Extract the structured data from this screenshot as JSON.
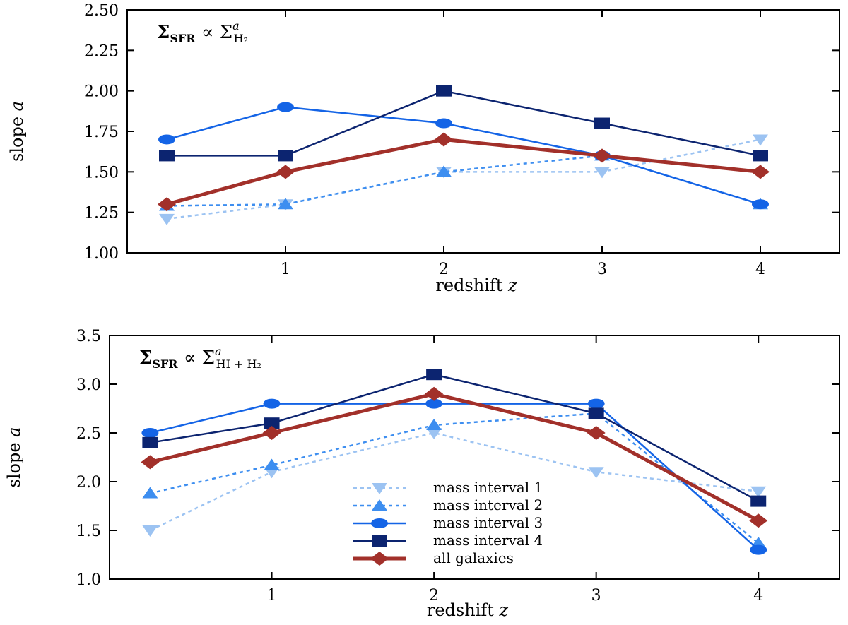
{
  "chart_data": [
    {
      "type": "line",
      "annotation": {
        "main": "Σ",
        "sub1": "SFR",
        "rel": " ∝ Σ",
        "sup": "a",
        "sub2": "H₂"
      },
      "xlabel": {
        "text": "redshift ",
        "var": "z"
      },
      "ylabel": {
        "text": "slope ",
        "var": "a"
      },
      "xlim": [
        0.0,
        4.5
      ],
      "ylim": [
        1.0,
        2.5
      ],
      "xticks": [
        1,
        2,
        3,
        4
      ],
      "xtick_labels": [
        "1",
        "2",
        "3",
        "4"
      ],
      "yticks": [
        1.0,
        1.25,
        1.5,
        1.75,
        2.0,
        2.25,
        2.5
      ],
      "ytick_labels": [
        "1.00",
        "1.25",
        "1.50",
        "1.75",
        "2.00",
        "2.25",
        "2.50"
      ],
      "grid": false,
      "series": [
        {
          "name": "mass interval 1",
          "x": [
            0.25,
            1,
            2,
            3,
            4
          ],
          "values": [
            1.21,
            1.3,
            1.5,
            1.5,
            1.7
          ]
        },
        {
          "name": "mass interval 2",
          "x": [
            0.25,
            1,
            2,
            3,
            4
          ],
          "values": [
            1.29,
            1.3,
            1.5,
            1.6,
            1.3
          ]
        },
        {
          "name": "mass interval 3",
          "x": [
            0.25,
            1,
            2,
            3,
            4
          ],
          "values": [
            1.7,
            1.9,
            1.8,
            1.6,
            1.3
          ]
        },
        {
          "name": "mass interval 4",
          "x": [
            0.25,
            1,
            2,
            3,
            4
          ],
          "values": [
            1.6,
            1.6,
            2.0,
            1.8,
            1.6
          ]
        },
        {
          "name": "all galaxies",
          "x": [
            0.25,
            1,
            2,
            3,
            4
          ],
          "values": [
            1.3,
            1.5,
            1.7,
            1.6,
            1.5
          ]
        }
      ]
    },
    {
      "type": "line",
      "annotation": {
        "main": "Σ",
        "sub1": "SFR",
        "rel": " ∝ Σ",
        "sup": "a",
        "sub2": "HI + H₂"
      },
      "xlabel": {
        "text": "redshift ",
        "var": "z"
      },
      "ylabel": {
        "text": "slope ",
        "var": "a"
      },
      "xlim": [
        0.0,
        4.5
      ],
      "ylim": [
        1.0,
        3.5
      ],
      "xticks": [
        1,
        2,
        3,
        4
      ],
      "xtick_labels": [
        "1",
        "2",
        "3",
        "4"
      ],
      "yticks": [
        1.0,
        1.5,
        2.0,
        2.5,
        3.0,
        3.5
      ],
      "ytick_labels": [
        "1.0",
        "1.5",
        "2.0",
        "2.5",
        "3.0",
        "3.5"
      ],
      "grid": false,
      "legend": {
        "position": "lower-center"
      },
      "series": [
        {
          "name": "mass interval 1",
          "x": [
            0.25,
            1,
            2,
            3,
            4
          ],
          "values": [
            1.5,
            2.1,
            2.5,
            2.1,
            1.9
          ]
        },
        {
          "name": "mass interval 2",
          "x": [
            0.25,
            1,
            2,
            3,
            4
          ],
          "values": [
            1.88,
            2.17,
            2.58,
            2.7,
            1.37
          ]
        },
        {
          "name": "mass interval 3",
          "x": [
            0.25,
            1,
            2,
            3,
            4
          ],
          "values": [
            2.5,
            2.8,
            2.8,
            2.8,
            1.3
          ]
        },
        {
          "name": "mass interval 4",
          "x": [
            0.25,
            1,
            2,
            3,
            4
          ],
          "values": [
            2.4,
            2.6,
            3.1,
            2.7,
            1.8
          ]
        },
        {
          "name": "all galaxies",
          "x": [
            0.25,
            1,
            2,
            3,
            4
          ],
          "values": [
            2.2,
            2.5,
            2.9,
            2.5,
            1.6
          ]
        }
      ]
    }
  ],
  "series_styles": [
    {
      "color": "#9cc3f2",
      "dash": "dotted",
      "marker": "triangle-down",
      "width": 2.5
    },
    {
      "color": "#3d8ef0",
      "dash": "dotted",
      "marker": "triangle-up",
      "width": 2.5
    },
    {
      "color": "#1464e6",
      "dash": "solid",
      "marker": "circle",
      "width": 2.5
    },
    {
      "color": "#0c2470",
      "dash": "solid",
      "marker": "square",
      "width": 2.5
    },
    {
      "color": "#a2302a",
      "dash": "solid",
      "marker": "diamond",
      "width": 5
    }
  ]
}
